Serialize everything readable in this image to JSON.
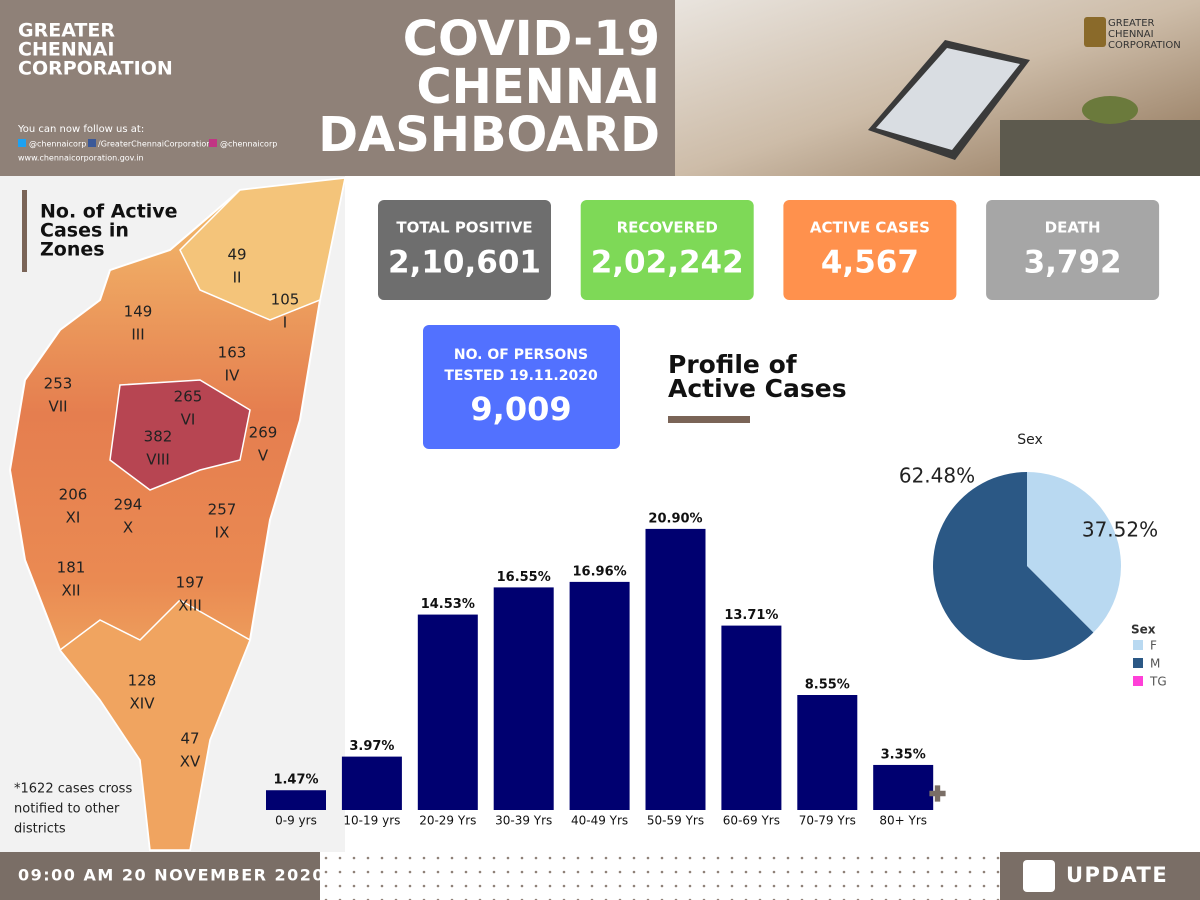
{
  "header": {
    "org_lines": [
      "GREATER",
      "CHENNAI",
      "CORPORATION"
    ],
    "follow_text": "You can now follow us at:",
    "social": [
      "@chennaicorp",
      "/GreaterChennaiCorporation",
      "@chennaicorp"
    ],
    "website": "www.chennaicorporation.gov.in",
    "title_lines": [
      "COVID-19",
      "CHENNAI",
      "DASHBOARD"
    ],
    "logo_lines": [
      "GREATER",
      "CHENNAI",
      "CORPORATION"
    ]
  },
  "map": {
    "title_lines": [
      "No. of Active",
      "Cases in",
      "Zones"
    ],
    "zones": [
      {
        "value": 105,
        "label": "I"
      },
      {
        "value": 49,
        "label": "II"
      },
      {
        "value": 149,
        "label": "III"
      },
      {
        "value": 163,
        "label": "IV"
      },
      {
        "value": 269,
        "label": "V"
      },
      {
        "value": 265,
        "label": "VI"
      },
      {
        "value": 253,
        "label": "VII"
      },
      {
        "value": 382,
        "label": "VIII"
      },
      {
        "value": 257,
        "label": "IX"
      },
      {
        "value": 294,
        "label": "X"
      },
      {
        "value": 206,
        "label": "XI"
      },
      {
        "value": 181,
        "label": "XII"
      },
      {
        "value": 197,
        "label": "XIII"
      },
      {
        "value": 128,
        "label": "XIV"
      },
      {
        "value": 47,
        "label": "XV"
      }
    ],
    "note_lines": [
      "*1622 cases cross",
      "notified to other",
      "districts"
    ]
  },
  "stats": [
    {
      "label": "TOTAL POSITIVE",
      "value": "2,10,601"
    },
    {
      "label": "RECOVERED",
      "value": "2,02,242"
    },
    {
      "label": "ACTIVE CASES",
      "value": "4,567"
    },
    {
      "label": "DEATH",
      "value": "3,792"
    }
  ],
  "tested": {
    "label_lines": [
      "NO. OF PERSONS",
      "TESTED 19.11.2020"
    ],
    "value": "9,009"
  },
  "profile_title_lines": [
    "Profile of",
    "Active Cases"
  ],
  "chart_data": [
    {
      "type": "bar",
      "categories": [
        "0-9 yrs",
        "10-19 yrs",
        "20-29 Yrs",
        "30-39 Yrs",
        "40-49 Yrs",
        "50-59 Yrs",
        "60-69 Yrs",
        "70-79 Yrs",
        "80+ Yrs"
      ],
      "values": [
        1.47,
        3.97,
        14.53,
        16.55,
        16.96,
        20.9,
        13.71,
        8.55,
        3.35
      ],
      "value_labels": [
        "1.47%",
        "3.97%",
        "14.53%",
        "16.55%",
        "16.96%",
        "20.90%",
        "13.71%",
        "8.55%",
        "3.35%"
      ],
      "color": "#000070"
    },
    {
      "type": "pie",
      "title": "Sex",
      "categories": [
        "F",
        "M",
        "TG"
      ],
      "values": [
        37.52,
        62.48,
        0
      ],
      "value_labels": [
        "37.52%",
        "62.48%",
        null
      ],
      "colors": [
        "#b9d9f1",
        "#2b5885",
        "#ff40d8"
      ],
      "legend_title": "Sex"
    }
  ],
  "footer": {
    "datetime": "09:00 AM 20 NOVEMBER 2020",
    "update": "UPDATE"
  }
}
